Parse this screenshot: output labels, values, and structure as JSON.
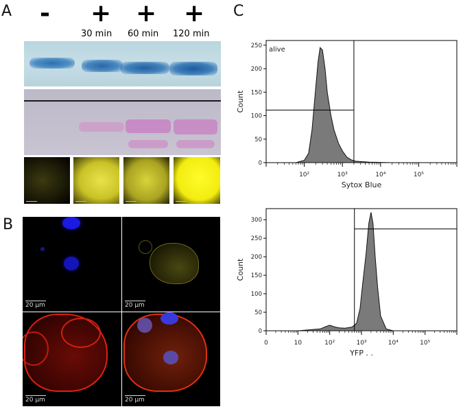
{
  "panels": {
    "a": "A",
    "b": "B",
    "c": "C"
  },
  "lanes": [
    {
      "sign": "-",
      "time": ""
    },
    {
      "sign": "+",
      "time": "30 min"
    },
    {
      "sign": "+",
      "time": "60 min"
    },
    {
      "sign": "+",
      "time": "120 min"
    }
  ],
  "micrographs": {
    "scale_label": "20 µm"
  },
  "chart_data": [
    {
      "type": "area",
      "title": "",
      "xlabel": "Sytox Blue",
      "ylabel": "Count",
      "x_scale": "log",
      "xlim": [
        10,
        1000000
      ],
      "ylim": [
        0,
        260
      ],
      "x_ticks": [
        "10²",
        "10³",
        "10⁴",
        "10⁵"
      ],
      "y_ticks": [
        0,
        50,
        100,
        150,
        200,
        250
      ],
      "gate_label": "alive",
      "gate_x": 2000,
      "gate_y": 112,
      "x": [
        60,
        100,
        130,
        160,
        200,
        230,
        260,
        300,
        350,
        400,
        500,
        600,
        800,
        1000,
        1300,
        1700,
        2200,
        5000,
        20000
      ],
      "values": [
        0,
        5,
        20,
        70,
        160,
        215,
        245,
        240,
        200,
        150,
        100,
        70,
        40,
        25,
        12,
        6,
        3,
        1,
        0
      ]
    },
    {
      "type": "area",
      "title": "",
      "xlabel": "YFP . .",
      "ylabel": "Count",
      "x_scale": "log",
      "xlim": [
        1,
        1000000
      ],
      "ylim": [
        0,
        330
      ],
      "x_ticks": [
        "0",
        "10",
        "10²",
        "10³",
        "10⁴",
        "10⁵"
      ],
      "y_ticks": [
        0,
        50,
        100,
        150,
        200,
        250,
        300
      ],
      "gate_x": 600,
      "gate_y": 275,
      "x": [
        10,
        50,
        80,
        100,
        150,
        200,
        300,
        500,
        700,
        900,
        1100,
        1400,
        1700,
        2000,
        2300,
        2700,
        3200,
        4000,
        6000,
        10000
      ],
      "values": [
        0,
        5,
        12,
        15,
        10,
        8,
        7,
        10,
        20,
        60,
        130,
        210,
        290,
        320,
        290,
        200,
        120,
        40,
        5,
        0
      ]
    }
  ]
}
